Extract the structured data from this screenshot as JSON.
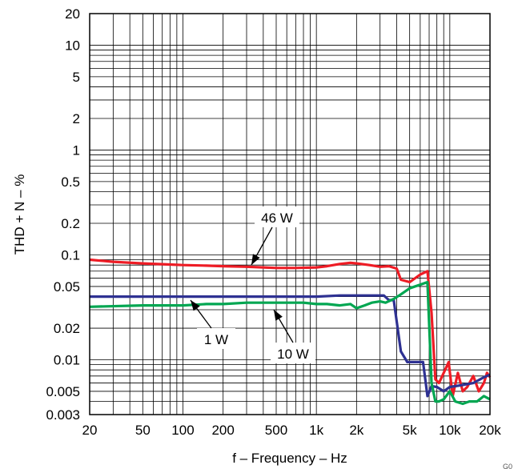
{
  "chart_data": {
    "type": "line",
    "xlabel": "f – Frequency – Hz",
    "ylabel": "THD + N – %",
    "xscale": "log",
    "yscale": "log",
    "xlim": [
      20,
      20000
    ],
    "ylim": [
      0.003,
      20
    ],
    "grid": true,
    "x_ticks": [
      20,
      50,
      100,
      200,
      500,
      1000,
      2000,
      5000,
      10000,
      20000
    ],
    "x_tick_labels": [
      "20",
      "50",
      "100",
      "200",
      "500",
      "1k",
      "2k",
      "5k",
      "10k",
      "20k"
    ],
    "y_ticks": [
      0.003,
      0.005,
      0.01,
      0.02,
      0.05,
      0.1,
      0.2,
      0.5,
      1,
      2,
      5,
      10,
      20
    ],
    "y_tick_labels": [
      "0.003",
      "0.005",
      "0.01",
      "0.02",
      "0.05",
      "0.1",
      "0.2",
      "0.5",
      "1",
      "2",
      "5",
      "10",
      "20"
    ],
    "series": [
      {
        "name": "46 W",
        "color": "#ee1c25",
        "x": [
          20,
          30,
          50,
          80,
          100,
          150,
          200,
          300,
          400,
          500,
          700,
          1000,
          1200,
          1500,
          1800,
          2000,
          2500,
          3000,
          3500,
          4000,
          4300,
          5000,
          6000,
          6800,
          7300,
          7800,
          8300,
          9000,
          9800,
          10500,
          11500,
          12500,
          13500,
          15000,
          16500,
          18000,
          19000,
          20000
        ],
        "values": [
          0.09,
          0.086,
          0.083,
          0.081,
          0.08,
          0.079,
          0.078,
          0.077,
          0.076,
          0.075,
          0.075,
          0.076,
          0.078,
          0.082,
          0.084,
          0.083,
          0.08,
          0.077,
          0.078,
          0.074,
          0.058,
          0.055,
          0.065,
          0.07,
          0.028,
          0.0065,
          0.006,
          0.0075,
          0.0095,
          0.0045,
          0.0075,
          0.005,
          0.0055,
          0.007,
          0.005,
          0.006,
          0.0075,
          0.0068
        ]
      },
      {
        "name": "1 W",
        "color": "#2e3192",
        "x": [
          20,
          50,
          100,
          200,
          500,
          1000,
          1500,
          2000,
          2500,
          3000,
          3200,
          3500,
          3800,
          4300,
          4800,
          5200,
          5800,
          6300,
          6800,
          7300,
          8000,
          9000,
          10000,
          12000,
          15000,
          18000,
          20000
        ],
        "values": [
          0.04,
          0.04,
          0.04,
          0.04,
          0.04,
          0.04,
          0.041,
          0.041,
          0.041,
          0.041,
          0.041,
          0.037,
          0.037,
          0.012,
          0.0095,
          0.0095,
          0.0095,
          0.0095,
          0.0045,
          0.0056,
          0.0055,
          0.005,
          0.0055,
          0.0057,
          0.006,
          0.0068,
          0.0072
        ]
      },
      {
        "name": "10 W",
        "color": "#00a651",
        "x": [
          20,
          50,
          100,
          150,
          200,
          300,
          500,
          800,
          1000,
          1200,
          1500,
          1800,
          2000,
          2300,
          2600,
          3000,
          3300,
          3800,
          4300,
          5000,
          6000,
          6800,
          7300,
          7800,
          8300,
          9000,
          10000,
          11000,
          12500,
          14000,
          16000,
          18000,
          20000
        ],
        "values": [
          0.032,
          0.033,
          0.033,
          0.034,
          0.034,
          0.035,
          0.035,
          0.035,
          0.034,
          0.034,
          0.033,
          0.034,
          0.031,
          0.033,
          0.035,
          0.036,
          0.035,
          0.038,
          0.042,
          0.048,
          0.052,
          0.055,
          0.006,
          0.004,
          0.004,
          0.0042,
          0.005,
          0.004,
          0.0038,
          0.004,
          0.004,
          0.0045,
          0.0042
        ]
      }
    ],
    "annotations": [
      {
        "text": "46 W",
        "series": "46 W"
      },
      {
        "text": "1 W",
        "series": "1 W"
      },
      {
        "text": "10 W",
        "series": "10 W"
      }
    ],
    "corner_mark": "G0"
  }
}
